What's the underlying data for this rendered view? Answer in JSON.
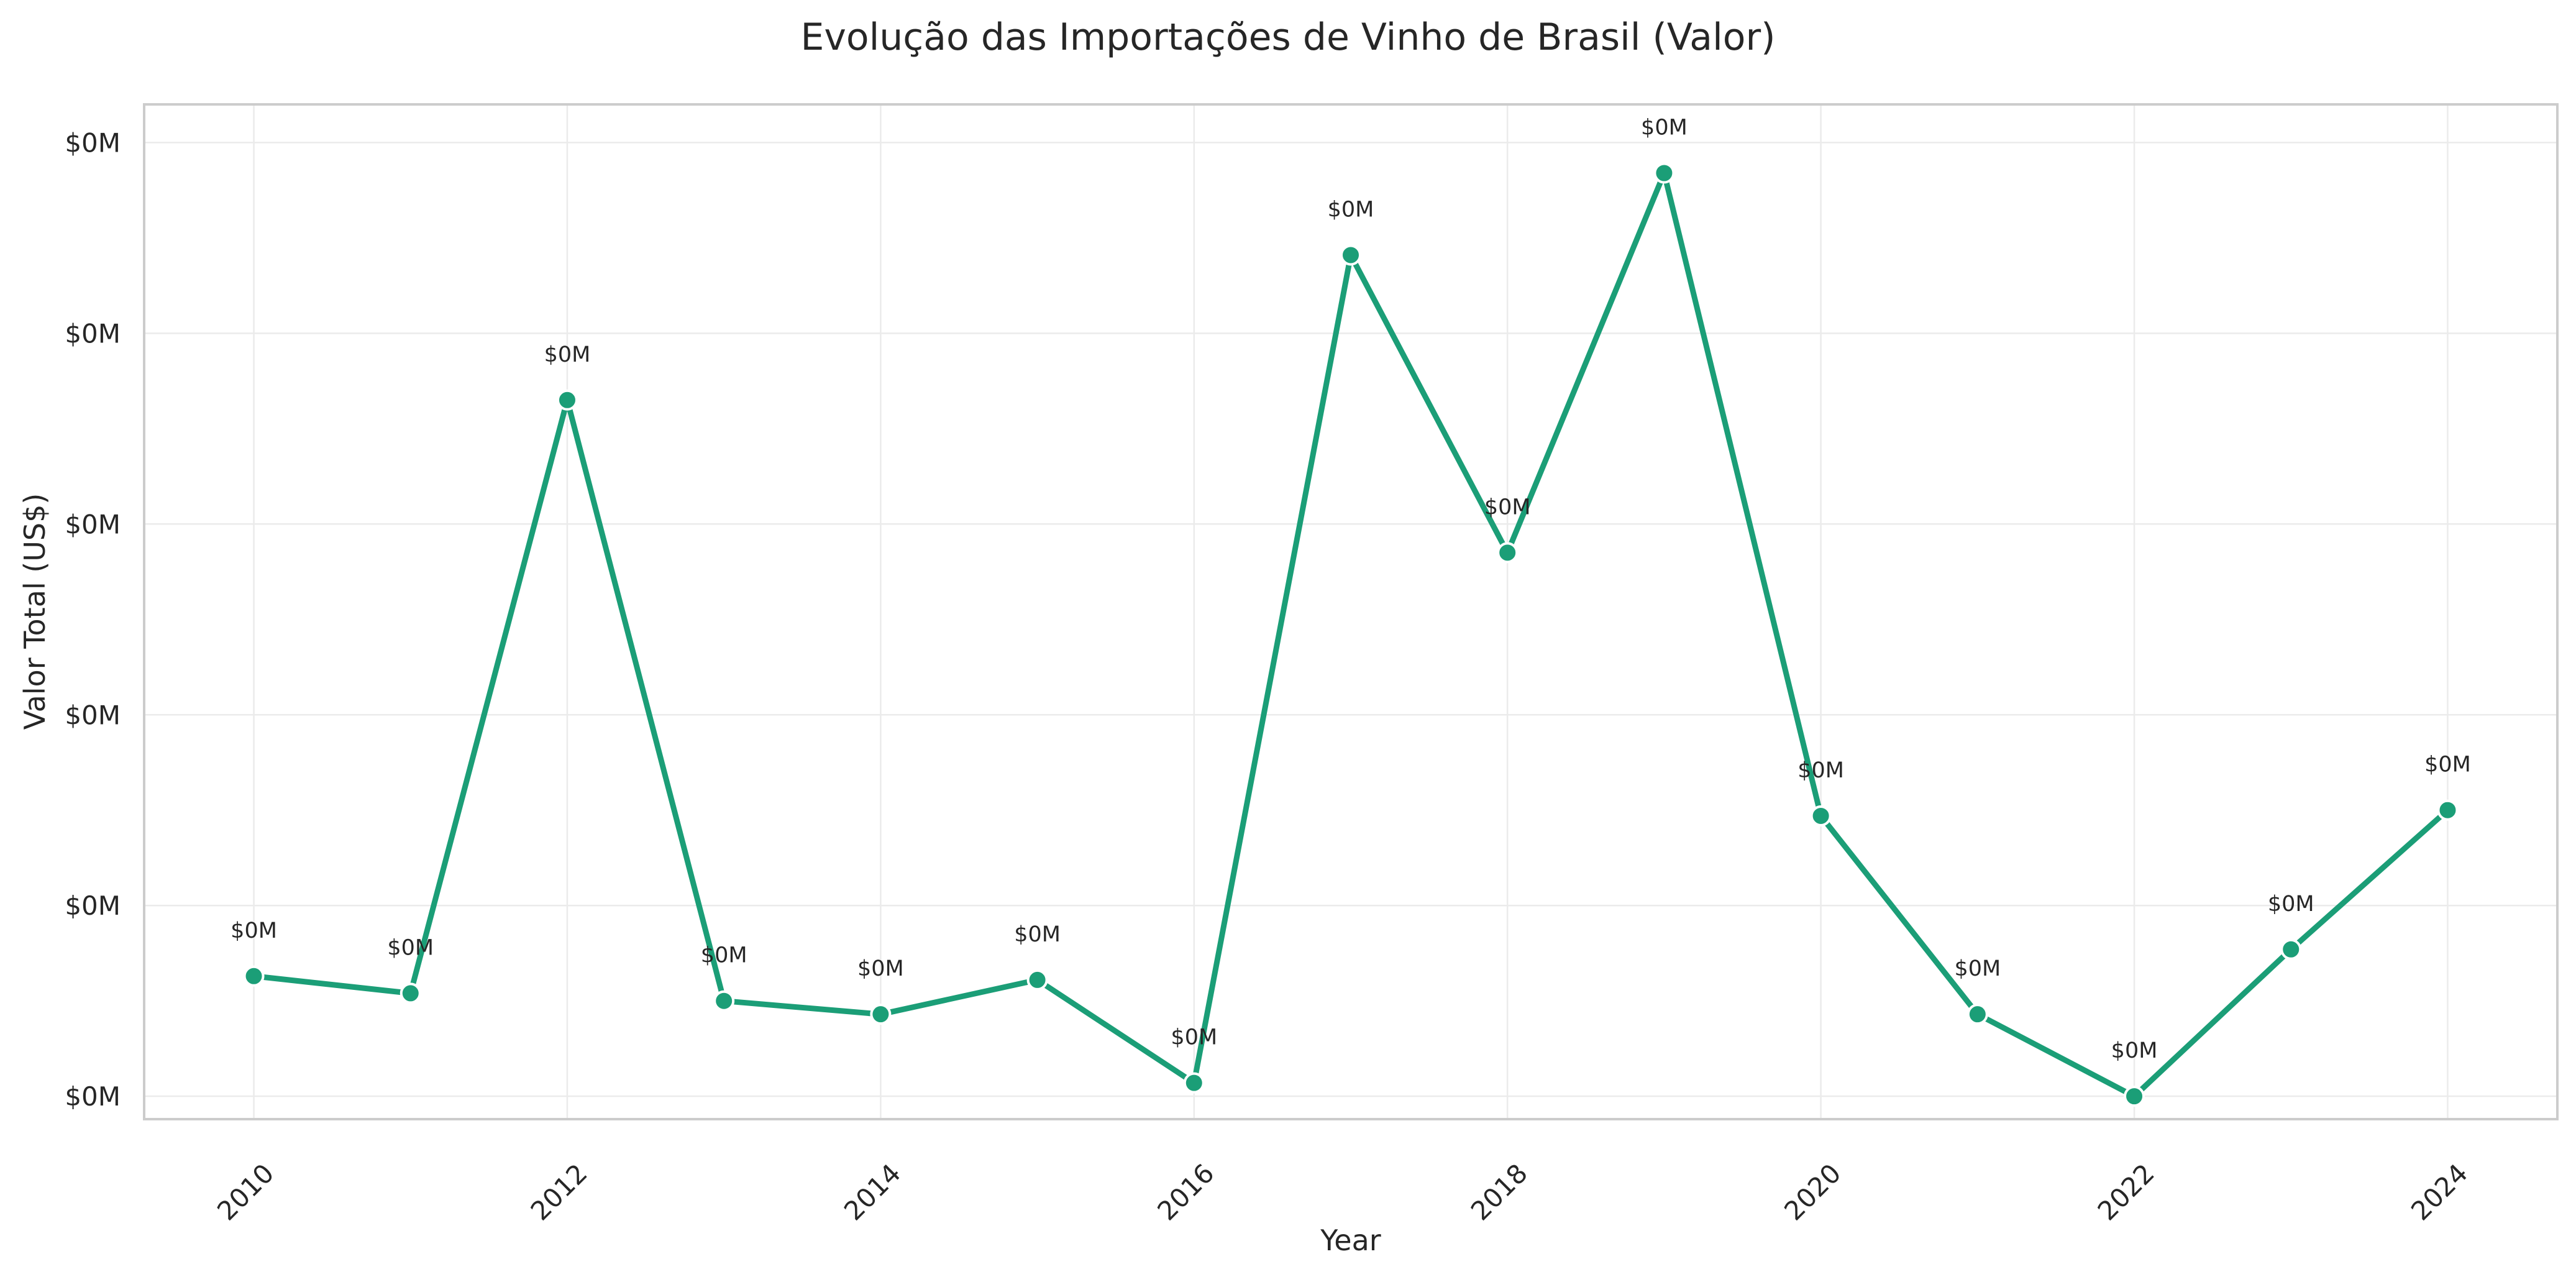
{
  "chart_data": {
    "type": "line",
    "title": "Evolução das Importações de Vinho de Brasil (Valor)",
    "xlabel": "Year",
    "ylabel": "Valor Total (US$)",
    "xlim": [
      2009.3,
      2024.7
    ],
    "ylim": [
      -0.12,
      5.2
    ],
    "x_ticks": [
      2010,
      2012,
      2014,
      2016,
      2018,
      2020,
      2022,
      2024
    ],
    "x_tick_labels": [
      "2010",
      "2012",
      "2014",
      "2016",
      "2018",
      "2020",
      "2022",
      "2024"
    ],
    "y_ticks": [
      0,
      1,
      2,
      3,
      4,
      5
    ],
    "y_tick_labels": [
      "$0M",
      "$0M",
      "$0M",
      "$0M",
      "$0M",
      "$0M"
    ],
    "grid": true,
    "legend": "none",
    "colors": {
      "series": "#1b9e77"
    },
    "series": [
      {
        "x": [
          2010,
          2011,
          2012,
          2013,
          2014,
          2015,
          2016,
          2017,
          2018,
          2019,
          2020,
          2021,
          2022,
          2023,
          2024
        ],
        "values": [
          0.63,
          0.54,
          3.65,
          0.5,
          0.43,
          0.61,
          0.07,
          4.41,
          2.85,
          4.84,
          1.47,
          0.43,
          0.0,
          0.77,
          1.5
        ],
        "data_labels": [
          "$0M",
          "$0M",
          "$0M",
          "$0M",
          "$0M",
          "$0M",
          "$0M",
          "$0M",
          "$0M",
          "$0M",
          "$0M",
          "$0M",
          "$0M",
          "$0M",
          "$0M"
        ]
      }
    ]
  }
}
